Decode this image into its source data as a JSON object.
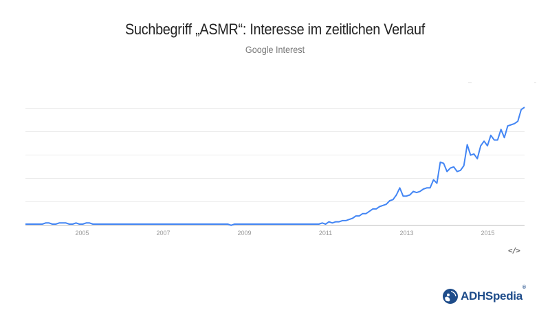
{
  "header": {
    "title": "Suchbegriff „ASMR“: Interesse im zeitlichen Verlauf",
    "subtitle": "Google Interest"
  },
  "embed": {
    "icon": "code-embed-icon",
    "label": "</>"
  },
  "logo": {
    "icon": "adhspedia-globe-icon",
    "text": "ADHSpedia",
    "reg": "®",
    "color": "#1e4c8a"
  },
  "colors": {
    "line": "#4285f4",
    "grid": "#ebebeb",
    "axis": "#bbbbbb",
    "tick_text": "#999999"
  },
  "chart_data": {
    "type": "line",
    "title": "Suchbegriff „ASMR“: Interesse im zeitlichen Verlauf",
    "subtitle": "Google Interest",
    "xlabel": "",
    "ylabel": "",
    "x_tick_labels": [
      "2005",
      "2007",
      "2009",
      "2011",
      "2013",
      "2015"
    ],
    "ylim": [
      0,
      100
    ],
    "grid": true,
    "y_gridlines": [
      20,
      40,
      60,
      80,
      100
    ],
    "legend": null,
    "x_start": "2004-01",
    "x_step": "month",
    "series": [
      {
        "name": "ASMR",
        "values": [
          0,
          0,
          0,
          0,
          0,
          0,
          1,
          1,
          0,
          0,
          1,
          1,
          1,
          0,
          0,
          1,
          0,
          0,
          1,
          1,
          0,
          0,
          0,
          0,
          0,
          0,
          0,
          0,
          0,
          0,
          0,
          0,
          0,
          0,
          0,
          0,
          0,
          0,
          0,
          0,
          0,
          0,
          0,
          0,
          0,
          0,
          0,
          0,
          0,
          0,
          0,
          0,
          0,
          0,
          0,
          0,
          0,
          0,
          0,
          0,
          0,
          -1,
          0,
          0,
          0,
          0,
          0,
          0,
          0,
          0,
          0,
          0,
          0,
          0,
          0,
          0,
          0,
          0,
          0,
          0,
          0,
          0,
          0,
          0,
          0,
          0,
          0,
          0,
          1,
          0,
          2,
          1,
          2,
          2,
          3,
          3,
          4,
          5,
          7,
          7,
          9,
          9,
          11,
          13,
          13,
          15,
          16,
          17,
          20,
          21,
          25,
          31,
          24,
          24,
          25,
          28,
          27,
          28,
          30,
          31,
          31,
          38,
          35,
          53,
          52,
          45,
          48,
          49,
          45,
          46,
          50,
          68,
          59,
          60,
          56,
          67,
          71,
          67,
          76,
          72,
          72,
          81,
          74,
          84,
          85,
          86,
          88,
          98,
          100
        ]
      }
    ]
  }
}
